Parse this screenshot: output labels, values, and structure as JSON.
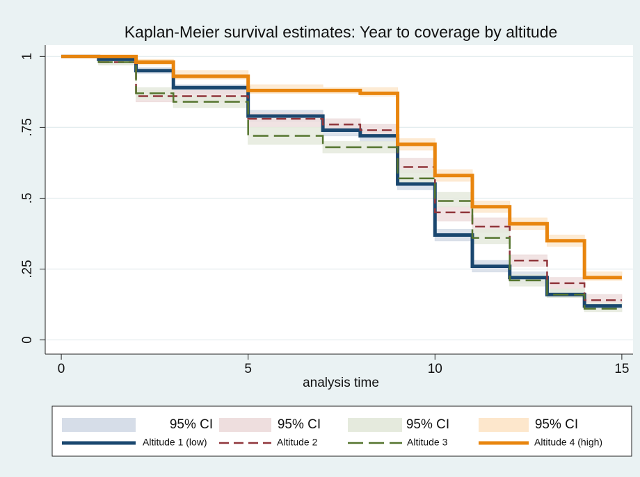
{
  "chart_data": {
    "type": "km_step",
    "title": "Kaplan-Meier survival estimates: Year to coverage by altitude",
    "xlabel": "analysis time",
    "x": [
      0,
      1,
      2,
      3,
      4,
      5,
      6,
      7,
      8,
      9,
      10,
      11,
      12,
      13,
      14,
      15
    ],
    "xlim": [
      -0.43,
      15.3
    ],
    "xticks": [
      0,
      5,
      10,
      15
    ],
    "ylim": [
      -0.05,
      1.04
    ],
    "yticks": [
      0,
      {
        "value": 0.25,
        "label": ".25"
      },
      {
        "value": 0.5,
        "label": ".5"
      },
      {
        "value": 0.75,
        "label": ".75"
      },
      1
    ],
    "grid": true,
    "series": [
      {
        "name": "Altitude 1 (low)",
        "ci_name": "95% CI",
        "color": "#1a476f",
        "ci_color": "#d6dde8",
        "dash": "solid",
        "values": [
          1,
          0.99,
          0.95,
          0.89,
          0.89,
          0.79,
          0.79,
          0.74,
          0.72,
          0.55,
          0.37,
          0.26,
          0.22,
          0.16,
          0.12,
          0.12
        ],
        "lower": [
          1,
          0.98,
          0.94,
          0.87,
          0.87,
          0.77,
          0.77,
          0.72,
          0.7,
          0.53,
          0.35,
          0.24,
          0.2,
          0.15,
          0.11,
          0.11
        ],
        "upper": [
          1,
          1,
          0.96,
          0.9,
          0.9,
          0.81,
          0.81,
          0.76,
          0.74,
          0.57,
          0.39,
          0.28,
          0.24,
          0.18,
          0.13,
          0.13
        ]
      },
      {
        "name": "Altitude 2",
        "ci_name": "95% CI",
        "color": "#90353b",
        "ci_color": "#eedede",
        "dash": "dash",
        "values": [
          1,
          0.98,
          0.86,
          0.86,
          0.86,
          0.78,
          0.78,
          0.76,
          0.74,
          0.61,
          0.45,
          0.4,
          0.28,
          0.2,
          0.14,
          0.14
        ],
        "lower": [
          1,
          0.97,
          0.84,
          0.84,
          0.84,
          0.75,
          0.75,
          0.74,
          0.72,
          0.59,
          0.42,
          0.38,
          0.26,
          0.18,
          0.12,
          0.12
        ],
        "upper": [
          1,
          0.99,
          0.88,
          0.88,
          0.88,
          0.8,
          0.8,
          0.78,
          0.76,
          0.64,
          0.47,
          0.43,
          0.3,
          0.22,
          0.16,
          0.16
        ]
      },
      {
        "name": "Altitude 3",
        "ci_name": "95% CI",
        "color": "#55752f",
        "ci_color": "#e5eadd",
        "dash": "longdash",
        "values": [
          1,
          0.98,
          0.87,
          0.84,
          0.84,
          0.72,
          0.72,
          0.68,
          0.68,
          0.57,
          0.49,
          0.36,
          0.21,
          0.16,
          0.11,
          0.11
        ],
        "lower": [
          1,
          0.97,
          0.85,
          0.82,
          0.82,
          0.69,
          0.69,
          0.66,
          0.66,
          0.55,
          0.47,
          0.34,
          0.19,
          0.15,
          0.1,
          0.1
        ],
        "upper": [
          1,
          0.99,
          0.89,
          0.86,
          0.86,
          0.75,
          0.75,
          0.7,
          0.7,
          0.6,
          0.52,
          0.39,
          0.23,
          0.18,
          0.13,
          0.13
        ]
      },
      {
        "name": "Altitude 4 (high)",
        "ci_name": "95% CI",
        "color": "#e8850e",
        "ci_color": "#fde7cc",
        "dash": "solid",
        "values": [
          1,
          1,
          0.98,
          0.93,
          0.93,
          0.88,
          0.88,
          0.88,
          0.87,
          0.69,
          0.58,
          0.47,
          0.41,
          0.35,
          0.22,
          0.22
        ],
        "lower": [
          1,
          1,
          0.97,
          0.92,
          0.92,
          0.87,
          0.87,
          0.87,
          0.86,
          0.67,
          0.56,
          0.45,
          0.39,
          0.33,
          0.21,
          0.21
        ],
        "upper": [
          1,
          1,
          0.99,
          0.95,
          0.95,
          0.9,
          0.9,
          0.89,
          0.89,
          0.71,
          0.6,
          0.49,
          0.43,
          0.37,
          0.24,
          0.24
        ]
      }
    ]
  }
}
